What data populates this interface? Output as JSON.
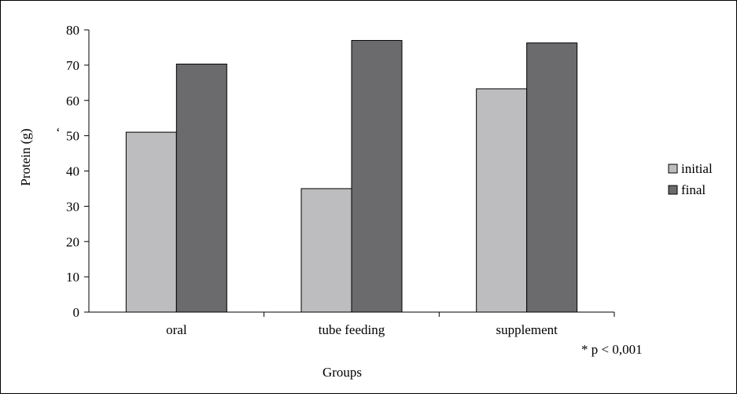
{
  "chart_data": {
    "type": "bar",
    "title": "",
    "xlabel": "Groups",
    "ylabel": "Protein (g)",
    "ylim": [
      0,
      80
    ],
    "yticks": [
      "0",
      "10",
      "20",
      "30",
      "40",
      "50",
      "60",
      "70",
      "80"
    ],
    "categories": [
      "oral",
      "tube feeding",
      "supplement"
    ],
    "series": [
      {
        "name": "initial",
        "values": [
          51,
          35,
          63.3
        ],
        "color": "#bdbdbf"
      },
      {
        "name": "final",
        "values": [
          70.3,
          77,
          76.3
        ],
        "color": "#6b6b6e"
      }
    ],
    "grid": false,
    "legend": "right",
    "annotations": [
      "* p < 0,001"
    ],
    "stray_mark": "‘"
  }
}
